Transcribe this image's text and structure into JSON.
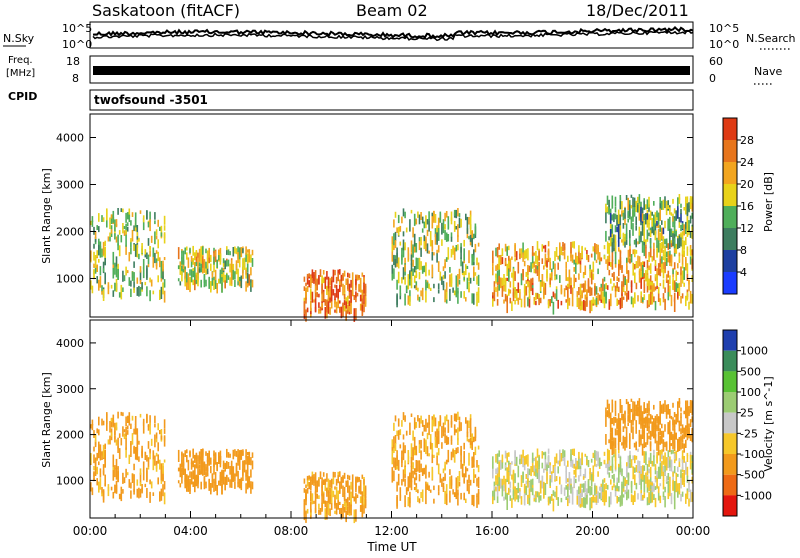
{
  "header": {
    "station": "Saskatoon (fitACF)",
    "beam": "Beam 02",
    "date": "18/Dec/2011"
  },
  "noise_panel": {
    "left_label": "N.Sky",
    "right_label": "N.Search",
    "right_ticks": [
      "10^5",
      "10^0"
    ],
    "left_ticks": [
      "10^5",
      "10^0"
    ]
  },
  "freq_panel": {
    "left_label_line1": "Freq.",
    "left_label_line2": "[MHz]",
    "left_ticks": [
      "18",
      "8"
    ],
    "right_label": "Nave",
    "right_ticks": [
      "60",
      "0"
    ]
  },
  "cpid_panel": {
    "label": "CPID",
    "value": "twofsound -3501"
  },
  "chart_data": [
    {
      "type": "heatmap",
      "parameter": "Power",
      "ylabel": "Slant Range [km]",
      "xlabel": "",
      "ylim": [
        180,
        4500
      ],
      "y_ticks": [
        1000,
        2000,
        3000,
        4000
      ],
      "colorbar_label": "Power [dB]",
      "colorbar_ticks": [
        4,
        8,
        12,
        16,
        20,
        24,
        28
      ],
      "colorbar_colors": [
        "#1a3cff",
        "#1d3fa0",
        "#3d7d5f",
        "#4fae5a",
        "#e8d21a",
        "#f2a51f",
        "#e7751c",
        "#de3a14"
      ],
      "echo_regions": [
        {
          "t_start": 0.0,
          "t_end": 3.0,
          "r_low": 700,
          "r_high": 2500,
          "level": 16
        },
        {
          "t_start": 3.5,
          "t_end": 6.5,
          "r_low": 900,
          "r_high": 1700,
          "level": 18
        },
        {
          "t_start": 8.5,
          "t_end": 11.0,
          "r_low": 300,
          "r_high": 1200,
          "level": 26
        },
        {
          "t_start": 12.0,
          "t_end": 15.5,
          "r_low": 600,
          "r_high": 2500,
          "level": 16
        },
        {
          "t_start": 16.0,
          "t_end": 24.0,
          "r_low": 500,
          "r_high": 1800,
          "level": 22
        },
        {
          "t_start": 20.5,
          "t_end": 24.0,
          "r_low": 1800,
          "r_high": 2800,
          "level": 14
        }
      ]
    },
    {
      "type": "heatmap",
      "parameter": "Velocity",
      "ylabel": "Slant Range [km]",
      "xlabel": "Time UT",
      "ylim": [
        180,
        4500
      ],
      "y_ticks": [
        1000,
        2000,
        3000,
        4000
      ],
      "x_ticks": [
        "00:00",
        "04:00",
        "08:00",
        "12:00",
        "16:00",
        "20:00",
        "00:00"
      ],
      "colorbar_label": "Velocity [m s^-1]",
      "colorbar_ticks": [
        "1000",
        "500",
        "100",
        "25",
        "-25",
        "-100",
        "-500",
        "-1000"
      ],
      "colorbar_colors": [
        "#1f3fae",
        "#3a8c5a",
        "#58c234",
        "#9ccc73",
        "#c8c8c8",
        "#f6c72a",
        "#f29a1c",
        "#ee6a15",
        "#e4160e"
      ],
      "echo_regions": [
        {
          "t_start": 0.0,
          "t_end": 3.0,
          "r_low": 700,
          "r_high": 2500,
          "velocity": -150
        },
        {
          "t_start": 3.5,
          "t_end": 6.5,
          "r_low": 900,
          "r_high": 1700,
          "velocity": -200
        },
        {
          "t_start": 8.5,
          "t_end": 11.0,
          "r_low": 300,
          "r_high": 1200,
          "velocity": -150
        },
        {
          "t_start": 12.0,
          "t_end": 15.5,
          "r_low": 600,
          "r_high": 2500,
          "velocity": -150
        },
        {
          "t_start": 16.0,
          "t_end": 24.0,
          "r_low": 600,
          "r_high": 1700,
          "velocity": 0
        },
        {
          "t_start": 20.5,
          "t_end": 24.0,
          "r_low": 1800,
          "r_high": 2800,
          "velocity": -300
        }
      ]
    }
  ]
}
